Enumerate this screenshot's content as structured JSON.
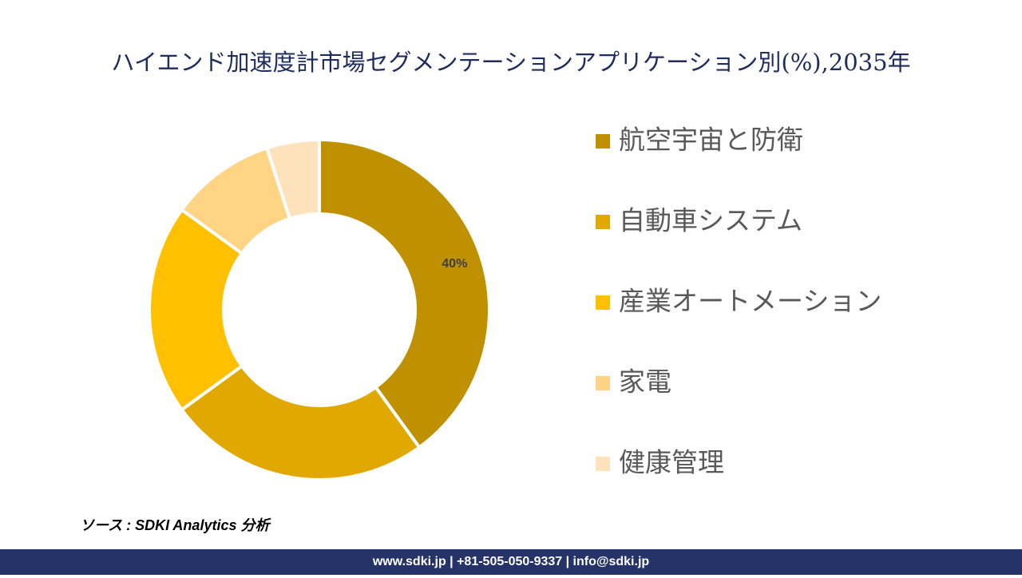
{
  "chart_data": {
    "type": "donut",
    "title": "ハイエンド加速度計市場セグメンテーションアプリケーション別(%),2035年",
    "categories": [
      "航空宇宙と防衛",
      "自動車システム",
      "産業オートメーション",
      "家電",
      "健康管理"
    ],
    "values": [
      40,
      25,
      20,
      10,
      5
    ],
    "value_labels": [
      "40%",
      null,
      null,
      null,
      null
    ],
    "colors": [
      "#bf9000",
      "#e0a800",
      "#ffc000",
      "#ffd485",
      "#fde2bb"
    ],
    "source": "ソース : SDKI Analytics 分析",
    "footer": "www.sdki.jp | +81-505-050-9337 | info@sdki.jp"
  }
}
